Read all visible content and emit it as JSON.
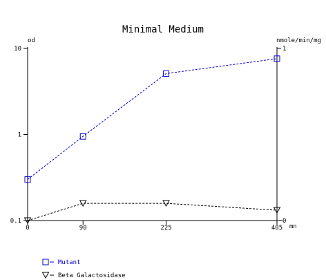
{
  "chart_data": {
    "type": "line",
    "title": "Minimal Medium",
    "xlabel": "mn",
    "ylabel_left": "od",
    "ylabel_right": "nmole/min/mg",
    "x": [
      0,
      90,
      225,
      405
    ],
    "x_tick_labels": [
      "0",
      "90",
      "225",
      "405"
    ],
    "xlim": [
      0,
      405
    ],
    "y_left": {
      "scale": "log",
      "lim": [
        0.1,
        10
      ],
      "tick_labels": [
        "0.1",
        "1",
        "10"
      ]
    },
    "y_right": {
      "scale": "linear",
      "lim": [
        0,
        1
      ],
      "tick_labels": [
        "0",
        "1"
      ]
    },
    "grid": false,
    "legend_placement": "bottom-left",
    "series": [
      {
        "name": "Mutant",
        "axis": "left",
        "marker": "square",
        "line": "dashed",
        "color": "#0000cc",
        "values": [
          0.3,
          0.95,
          5.1,
          7.6
        ]
      },
      {
        "name": "Beta Galactosidase",
        "axis": "right",
        "marker": "triangle-down",
        "line": "dashed",
        "color": "#000000",
        "values": [
          0.0,
          0.1,
          0.1,
          0.06
        ]
      }
    ]
  }
}
